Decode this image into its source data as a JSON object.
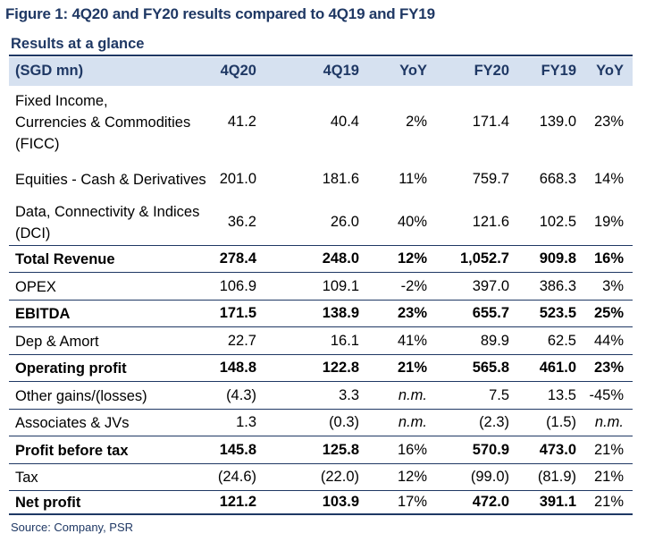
{
  "figure_title": "Figure 1: 4Q20 and FY20 results compared to 4Q19 and FY19",
  "subtitle": "Results at a glance",
  "header": [
    "(SGD mn)",
    "4Q20",
    "4Q19",
    "YoY",
    "FY20",
    "FY19",
    "YoY"
  ],
  "rows": [
    {
      "label_lines": [
        "Fixed Income,",
        "Currencies & Commodities",
        "(FICC)"
      ],
      "values": [
        "41.2",
        "40.4",
        "2%",
        "171.4",
        "139.0",
        "23%"
      ],
      "bold": false,
      "italic_cols": []
    },
    {
      "label_lines": [
        "Equities - Cash & Derivatives"
      ],
      "values": [
        "201.0",
        "181.6",
        "11%",
        "759.7",
        "668.3",
        "14%"
      ],
      "bold": false,
      "italic_cols": []
    },
    {
      "label_lines": [
        "Data, Connectivity & Indices",
        "(DCI)"
      ],
      "values": [
        "36.2",
        "26.0",
        "40%",
        "121.6",
        "102.5",
        "19%"
      ],
      "bold": false,
      "italic_cols": []
    },
    {
      "label_lines": [
        "Total Revenue"
      ],
      "values": [
        "278.4",
        "248.0",
        "12%",
        "1,052.7",
        "909.8",
        "16%"
      ],
      "bold": true,
      "italic_cols": []
    },
    {
      "label_lines": [
        "OPEX"
      ],
      "values": [
        "106.9",
        "109.1",
        "-2%",
        "397.0",
        "386.3",
        "3%"
      ],
      "bold": false,
      "italic_cols": []
    },
    {
      "label_lines": [
        "EBITDA"
      ],
      "values": [
        "171.5",
        "138.9",
        "23%",
        "655.7",
        "523.5",
        "25%"
      ],
      "bold": true,
      "italic_cols": []
    },
    {
      "label_lines": [
        "Dep & Amort"
      ],
      "values": [
        "22.7",
        "16.1",
        "41%",
        "89.9",
        "62.5",
        "44%"
      ],
      "bold": false,
      "italic_cols": []
    },
    {
      "label_lines": [
        "Operating profit"
      ],
      "values": [
        "148.8",
        "122.8",
        "21%",
        "565.8",
        "461.0",
        "23%"
      ],
      "bold": true,
      "italic_cols": []
    },
    {
      "label_lines": [
        "Other gains/(losses)"
      ],
      "values": [
        "(4.3)",
        "3.3",
        "n.m.",
        "7.5",
        "13.5",
        "-45%"
      ],
      "bold": false,
      "italic_cols": [
        2
      ]
    },
    {
      "label_lines": [
        "Associates & JVs"
      ],
      "values": [
        "1.3",
        "(0.3)",
        "n.m.",
        "(2.3)",
        "(1.5)",
        "n.m."
      ],
      "bold": false,
      "italic_cols": [
        2,
        5
      ]
    },
    {
      "label_lines": [
        "Profit before tax"
      ],
      "values": [
        "145.8",
        "125.8",
        "16%",
        "570.9",
        "473.0",
        "21%"
      ],
      "bold": true,
      "italic_cols": [],
      "bold_cols": [
        0,
        1,
        3,
        4
      ]
    },
    {
      "label_lines": [
        "Tax"
      ],
      "values": [
        "(24.6)",
        "(22.0)",
        "12%",
        "(99.0)",
        "(81.9)",
        "21%"
      ],
      "bold": false,
      "italic_cols": []
    },
    {
      "label_lines": [
        "Net profit"
      ],
      "values": [
        "121.2",
        "103.9",
        "17%",
        "472.0",
        "391.1",
        "21%"
      ],
      "bold": true,
      "italic_cols": [],
      "bold_cols": [
        0,
        1,
        3,
        4
      ]
    }
  ],
  "source": "Source: Company, PSR"
}
